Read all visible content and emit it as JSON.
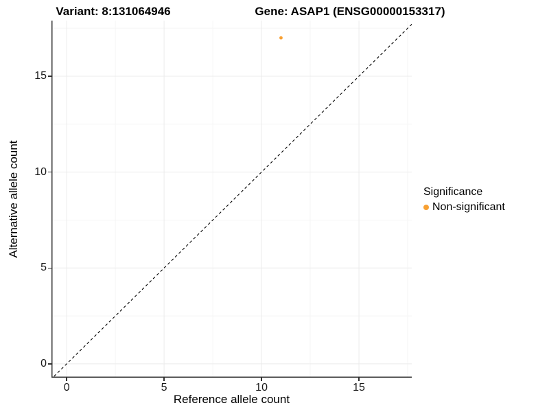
{
  "titles": {
    "variant": "Variant: 8:131064946",
    "gene": "Gene: ASAP1 (ENSG00000153317)"
  },
  "legend": {
    "title": "Significance",
    "items": [
      {
        "label": "Non-significant",
        "color": "#F8A032"
      }
    ]
  },
  "colors": {
    "grid_major": "#EBEBEB",
    "grid_minor": "#F5F5F5",
    "axis_line": "#333333",
    "tick_text": "#1a1a1a",
    "reference_line": "#000000",
    "point": "#F8A032"
  },
  "chart_data": {
    "type": "scatter",
    "title": "Variant: 8:131064946 — Gene: ASAP1 (ENSG00000153317)",
    "xlabel": "Reference allele count",
    "ylabel": "Alternative allele count",
    "xlim": [
      -0.78,
      17.71
    ],
    "ylim": [
      -0.72,
      17.9
    ],
    "x_ticks": [
      0,
      5,
      10,
      15
    ],
    "y_ticks": [
      0,
      5,
      10,
      15
    ],
    "x_minor_ticks": [
      2.5,
      7.5,
      12.5,
      17.5
    ],
    "y_minor_ticks": [
      2.5,
      7.5,
      12.5,
      17.5
    ],
    "grid": "major+minor",
    "legend_position": "right",
    "series": [
      {
        "name": "Non-significant",
        "color": "#F8A032",
        "points": [
          [
            11,
            17
          ]
        ]
      }
    ],
    "reference_line": {
      "type": "identity_y_equals_x",
      "style": "dashed",
      "color": "#000000"
    }
  }
}
